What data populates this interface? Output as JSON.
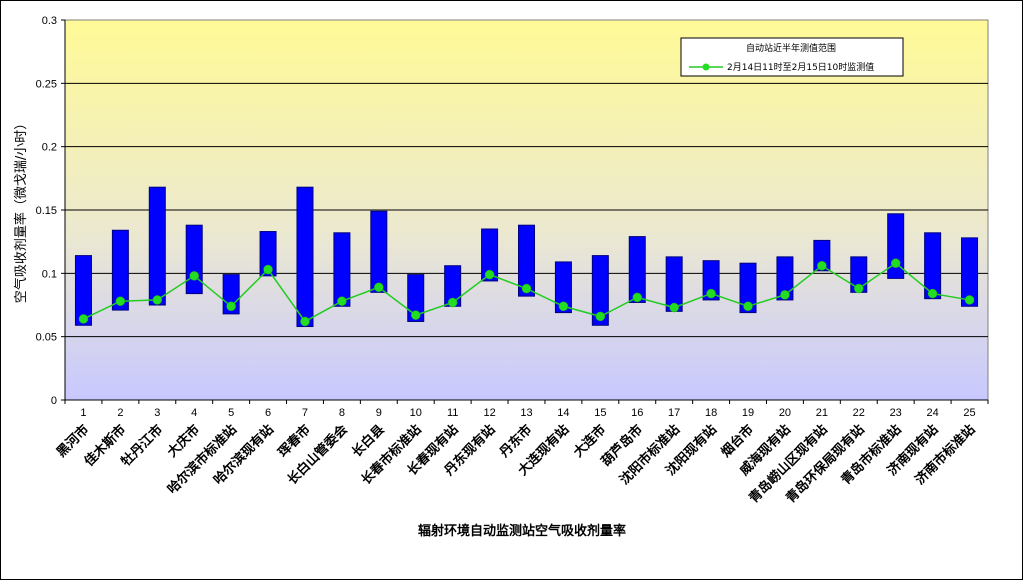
{
  "chart_data": {
    "type": "bar",
    "title": "",
    "xlabel": "辐射环境自动监测站空气吸收剂量率",
    "ylabel": "空气吸收剂量率（微戈瑞/小时）",
    "ylim": [
      0,
      0.3
    ],
    "yticks": [
      "0",
      "0.05",
      "0.1",
      "0.15",
      "0.2",
      "0.25",
      "0.3"
    ],
    "ytick_values": [
      0,
      0.05,
      0.1,
      0.15,
      0.2,
      0.25,
      0.3
    ],
    "grid": true,
    "legend_position": "top-right",
    "categories": [
      "1",
      "2",
      "3",
      "4",
      "5",
      "6",
      "7",
      "8",
      "9",
      "10",
      "11",
      "12",
      "13",
      "14",
      "15",
      "16",
      "17",
      "18",
      "19",
      "20",
      "21",
      "22",
      "23",
      "24",
      "25"
    ],
    "station_names": [
      "黑河市",
      "佳木斯市",
      "牡丹江市",
      "大庆市",
      "哈尔滨市标准站",
      "哈尔滨现有站",
      "珲春市",
      "长白山管委会",
      "长白县",
      "长春市标准站",
      "长春现有站",
      "丹东现有站",
      "丹东市",
      "大连现有站",
      "大连市",
      "葫芦岛市",
      "沈阳市标准站",
      "沈阳现有站",
      "烟台市",
      "威海现有站",
      "青岛崂山区现有站",
      "青岛环保局现有站",
      "青岛市标准站",
      "济南现有站",
      "济南市标准站"
    ],
    "series": [
      {
        "name": "自动站近半年测值范围",
        "kind": "range-bar",
        "low": [
          0.059,
          0.071,
          0.075,
          0.084,
          0.068,
          0.098,
          0.058,
          0.074,
          0.085,
          0.062,
          0.074,
          0.094,
          0.082,
          0.069,
          0.059,
          0.077,
          0.07,
          0.079,
          0.069,
          0.079,
          0.102,
          0.085,
          0.096,
          0.08,
          0.074
        ],
        "high": [
          0.114,
          0.134,
          0.168,
          0.138,
          0.099,
          0.133,
          0.168,
          0.132,
          0.149,
          0.099,
          0.106,
          0.135,
          0.138,
          0.109,
          0.114,
          0.129,
          0.113,
          0.11,
          0.108,
          0.113,
          0.126,
          0.113,
          0.147,
          0.132,
          0.128
        ]
      },
      {
        "name": "2月14日11时至2月15日10时监测值",
        "kind": "line",
        "values": [
          0.064,
          0.078,
          0.079,
          0.098,
          0.074,
          0.103,
          0.062,
          0.078,
          0.089,
          0.067,
          0.077,
          0.099,
          0.088,
          0.074,
          0.066,
          0.081,
          0.073,
          0.084,
          0.074,
          0.083,
          0.106,
          0.088,
          0.108,
          0.084,
          0.079
        ]
      }
    ],
    "colors": {
      "bar_fill": "#0000ff",
      "bar_stroke": "#000080",
      "line": "#22cc22",
      "marker": "#22dd22",
      "bg_top": "#fffa96",
      "bg_bottom": "#c8c8ff",
      "grid": "#000000"
    }
  }
}
